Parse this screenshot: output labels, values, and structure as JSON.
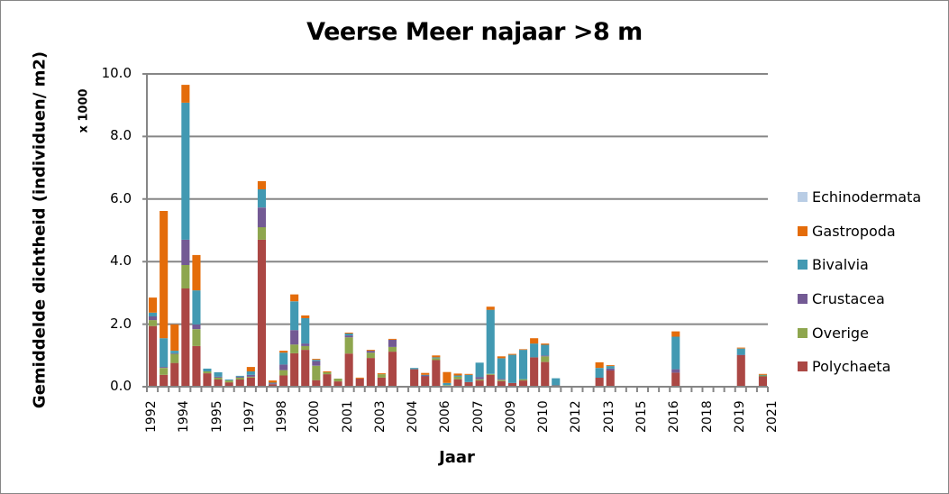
{
  "chart_data": {
    "type": "bar",
    "stacked": true,
    "title": "Veerse Meer najaar >8 m",
    "xlabel": "Jaar",
    "ylabel": "Gemiddelde dichtheid (individuen/ m2)",
    "y_unit_label": "x 1000",
    "ylim": [
      0,
      10
    ],
    "yticks": [
      "0.0",
      "2.0",
      "4.0",
      "6.0",
      "8.0",
      "10.0"
    ],
    "grid": true,
    "legend_position": "right",
    "x_tick_labels": [
      "1992",
      "1994",
      "1995",
      "1997",
      "1998",
      "2000",
      "2001",
      "2003",
      "2004",
      "2006",
      "2007",
      "2009",
      "2010",
      "2012",
      "2013",
      "2015",
      "2016",
      "2018",
      "2019",
      "2021"
    ],
    "slot_count": 57,
    "series_order_bottom_to_top": [
      "Polychaeta",
      "Overige",
      "Crustacea",
      "Bivalvia",
      "Gastropoda",
      "Echinodermata"
    ],
    "series": [
      {
        "name": "Polychaeta",
        "color": "#AB4744",
        "values": [
          1.94,
          0.38,
          0.76,
          3.14,
          1.3,
          0.43,
          0.23,
          0.14,
          0.23,
          0.29,
          4.7,
          0.08,
          0.36,
          1.07,
          1.18,
          0.21,
          0.4,
          0.17,
          1.06,
          0.26,
          0.92,
          0.29,
          1.12,
          0,
          0.56,
          0.33,
          0.85,
          0.03,
          0.24,
          0.15,
          0.2,
          0.38,
          0.18,
          0.12,
          0.2,
          0.94,
          0.79,
          0.04,
          0,
          0,
          0,
          0.29,
          0.52,
          0,
          0,
          0,
          0,
          0,
          0.45,
          0,
          0,
          0,
          0,
          0,
          1.01,
          0,
          0.33
        ]
      },
      {
        "name": "Overige",
        "color": "#8EA64E",
        "values": [
          0.19,
          0.22,
          0.29,
          0.75,
          0.54,
          0.06,
          0.06,
          0.06,
          0.06,
          0.03,
          0.4,
          0,
          0.17,
          0.28,
          0.12,
          0.46,
          0.06,
          0.09,
          0.52,
          0,
          0.17,
          0.11,
          0.15,
          0,
          0,
          0,
          0.06,
          0.02,
          0.08,
          0,
          0.04,
          0.03,
          0.04,
          0,
          0.04,
          0,
          0.18,
          0,
          0,
          0,
          0,
          0,
          0,
          0,
          0,
          0,
          0,
          0,
          0,
          0,
          0,
          0,
          0,
          0,
          0,
          0,
          0.03
        ]
      },
      {
        "name": "Crustacea",
        "color": "#735A94",
        "values": [
          0.12,
          0.03,
          0.02,
          0.81,
          0.15,
          0,
          0.03,
          0,
          0.03,
          0.06,
          0.63,
          0.03,
          0.18,
          0.46,
          0.08,
          0.15,
          0,
          0,
          0.06,
          0,
          0.06,
          0,
          0.23,
          0,
          0,
          0.03,
          0,
          0,
          0,
          0,
          0.07,
          0,
          0.03,
          0,
          0,
          0,
          0.03,
          0,
          0,
          0,
          0,
          0,
          0.06,
          0,
          0,
          0,
          0,
          0,
          0.11,
          0,
          0,
          0,
          0,
          0,
          0.01,
          0,
          0
        ]
      },
      {
        "name": "Bivalvia",
        "color": "#4299B2",
        "values": [
          0.12,
          0.92,
          0.08,
          4.38,
          1.09,
          0.09,
          0.14,
          0.03,
          0.03,
          0.11,
          0.58,
          0.02,
          0.38,
          0.92,
          0.81,
          0.04,
          0,
          0,
          0.06,
          0,
          0,
          0,
          0,
          0,
          0.04,
          0.02,
          0.03,
          0.07,
          0.04,
          0.23,
          0.46,
          2.05,
          0.66,
          0.9,
          0.94,
          0.44,
          0.34,
          0.23,
          0,
          0,
          0,
          0.31,
          0.08,
          0,
          0,
          0,
          0,
          0,
          1.04,
          0,
          0,
          0,
          0,
          0,
          0.2,
          0,
          0.02
        ]
      },
      {
        "name": "Gastropoda",
        "color": "#E46C0A",
        "values": [
          0.48,
          4.07,
          0.84,
          0.57,
          1.13,
          0,
          0,
          0,
          0,
          0.14,
          0.26,
          0.07,
          0.06,
          0.22,
          0.09,
          0.03,
          0.03,
          0,
          0.03,
          0.03,
          0.03,
          0.03,
          0.03,
          0,
          0,
          0.06,
          0.06,
          0.35,
          0.06,
          0.03,
          0,
          0.1,
          0.06,
          0.03,
          0.02,
          0.17,
          0.04,
          0,
          0,
          0,
          0,
          0.18,
          0.03,
          0,
          0,
          0,
          0,
          0,
          0.17,
          0,
          0,
          0,
          0,
          0,
          0.03,
          0,
          0.03
        ]
      },
      {
        "name": "Echinodermata",
        "color": "#B9CDE5",
        "values": [
          0,
          0,
          0,
          0,
          0,
          0,
          0,
          0,
          0,
          0,
          0,
          0,
          0,
          0,
          0,
          0,
          0,
          0,
          0,
          0,
          0,
          0,
          0,
          0,
          0,
          0,
          0,
          0,
          0,
          0,
          0,
          0,
          0,
          0,
          0,
          0,
          0,
          0,
          0,
          0,
          0,
          0,
          0,
          0,
          0,
          0,
          0,
          0,
          0,
          0,
          0,
          0,
          0,
          0,
          0,
          0,
          0
        ]
      }
    ]
  },
  "legend": {
    "items": [
      {
        "label": "Echinodermata",
        "color": "#B9CDE5"
      },
      {
        "label": "Gastropoda",
        "color": "#E46C0A"
      },
      {
        "label": "Bivalvia",
        "color": "#4299B2"
      },
      {
        "label": "Crustacea",
        "color": "#735A94"
      },
      {
        "label": "Overige",
        "color": "#8EA64E"
      },
      {
        "label": "Polychaeta",
        "color": "#AB4744"
      }
    ]
  },
  "colors": {
    "gridline": "#868686",
    "axis": "#868686",
    "border": "#868686"
  }
}
